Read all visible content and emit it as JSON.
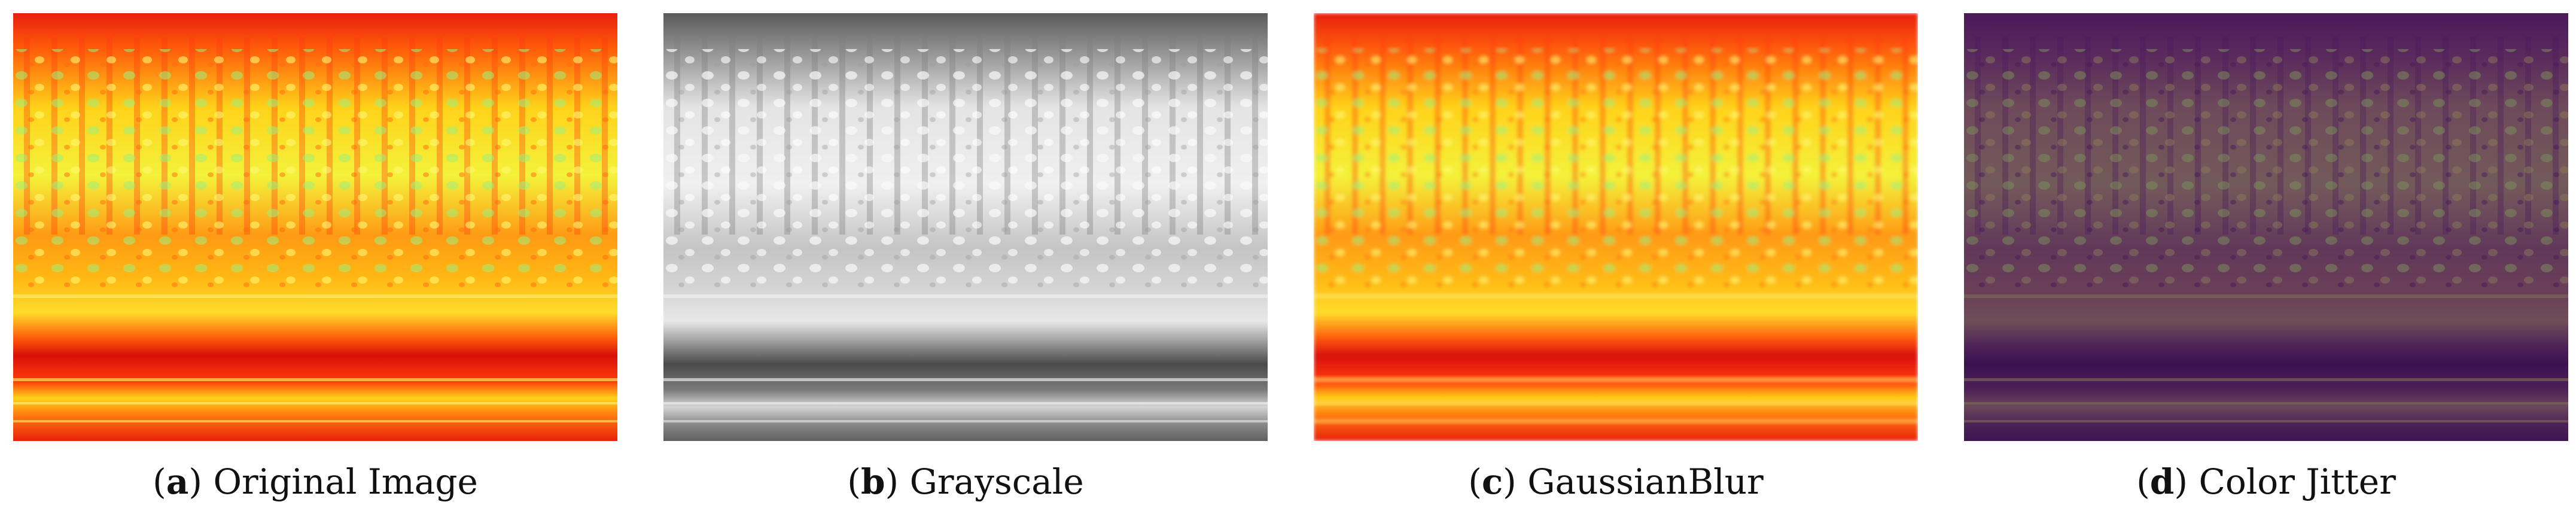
{
  "panels": [
    {
      "letter": "a",
      "title": "Original Image",
      "palette": "heat"
    },
    {
      "letter": "b",
      "title": "Grayscale",
      "palette": "gray"
    },
    {
      "letter": "c",
      "title": "GaussianBlur",
      "palette": "heat"
    },
    {
      "letter": "d",
      "title": "Color Jitter",
      "palette": "purple"
    }
  ]
}
